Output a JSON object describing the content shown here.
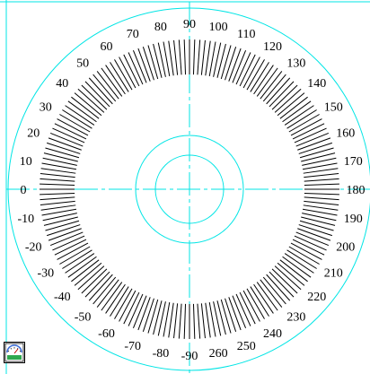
{
  "colors": {
    "construction": "#00e5e5",
    "ticks": "#000000",
    "text": "#000000",
    "background": "#ffffff"
  },
  "dial": {
    "tick_count": 180,
    "tick_step_degrees": 2,
    "labels_left": [
      "90",
      "80",
      "70",
      "60",
      "50",
      "40",
      "30",
      "20",
      "10",
      "0",
      "-10",
      "-20",
      "-30",
      "-40",
      "-50",
      "-60",
      "-70",
      "-80",
      "-90"
    ],
    "labels_right": [
      "100",
      "110",
      "120",
      "130",
      "140",
      "150",
      "160",
      "170",
      "180",
      "190",
      "200",
      "210",
      "220",
      "230",
      "240",
      "250",
      "260"
    ]
  },
  "app_icon": {
    "name": "gauge-app-icon"
  }
}
